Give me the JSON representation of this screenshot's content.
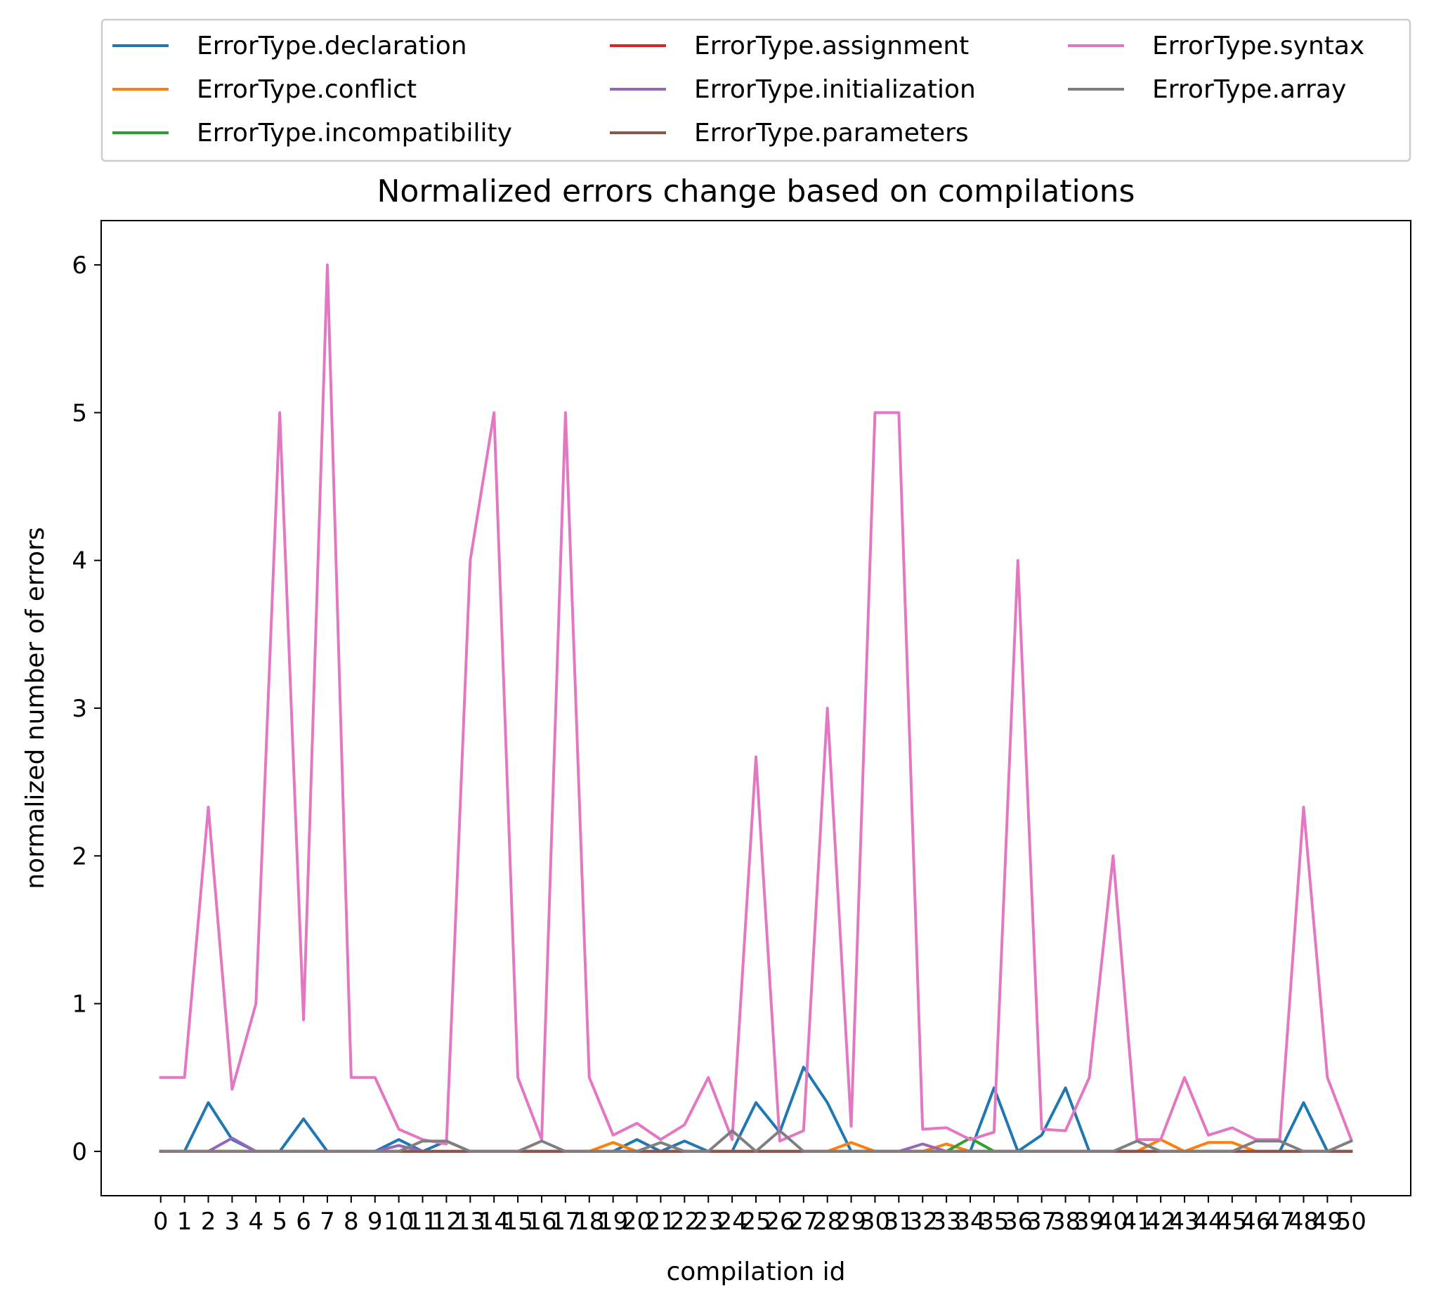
{
  "chart_data": {
    "type": "line",
    "title": "Normalized errors change based on compilations",
    "xlabel": "compilation id",
    "ylabel": "normalized number of errors",
    "x": [
      0,
      1,
      2,
      3,
      4,
      5,
      6,
      7,
      8,
      9,
      10,
      11,
      12,
      13,
      14,
      15,
      16,
      17,
      18,
      19,
      20,
      21,
      22,
      23,
      24,
      25,
      26,
      27,
      28,
      29,
      30,
      31,
      32,
      33,
      34,
      35,
      36,
      37,
      38,
      39,
      40,
      41,
      42,
      43,
      44,
      45,
      46,
      47,
      48,
      49,
      50
    ],
    "xlim": [
      -2.5,
      52.5
    ],
    "ylim": [
      -0.3,
      6.3
    ],
    "yticks": [
      0,
      1,
      2,
      3,
      4,
      5,
      6
    ],
    "grid": false,
    "legend": {
      "position": "above-plot",
      "columns": 3
    },
    "series": [
      {
        "name": "ErrorType.declaration",
        "color": "#1f77b4",
        "values": [
          0,
          0,
          0.33,
          0.08,
          0,
          0,
          0.22,
          0,
          0,
          0,
          0.08,
          0,
          0.07,
          0,
          0,
          0,
          0,
          0,
          0,
          0,
          0.08,
          0,
          0.07,
          0,
          0,
          0.33,
          0.13,
          0.57,
          0.33,
          0,
          0,
          0,
          0,
          0,
          0,
          0.43,
          0,
          0.11,
          0.43,
          0,
          0,
          0,
          0,
          0,
          0,
          0,
          0,
          0,
          0.33,
          0,
          0
        ]
      },
      {
        "name": "ErrorType.conflict",
        "color": "#ff7f0e",
        "values": [
          0,
          0,
          0,
          0,
          0,
          0,
          0,
          0,
          0,
          0,
          0,
          0,
          0,
          0,
          0,
          0,
          0,
          0,
          0,
          0.06,
          0,
          0,
          0,
          0,
          0,
          0,
          0,
          0,
          0,
          0.06,
          0,
          0,
          0,
          0.05,
          0,
          0,
          0,
          0,
          0,
          0,
          0,
          0,
          0.08,
          0,
          0.06,
          0.06,
          0,
          0,
          0,
          0,
          0
        ]
      },
      {
        "name": "ErrorType.incompatibility",
        "color": "#2ca02c",
        "values": [
          0,
          0,
          0,
          0,
          0,
          0,
          0,
          0,
          0,
          0,
          0,
          0,
          0,
          0,
          0,
          0,
          0,
          0,
          0,
          0,
          0,
          0,
          0,
          0,
          0,
          0,
          0,
          0,
          0,
          0,
          0,
          0,
          0,
          0,
          0.09,
          0,
          0,
          0,
          0,
          0,
          0,
          0,
          0,
          0,
          0,
          0,
          0,
          0,
          0,
          0,
          0
        ]
      },
      {
        "name": "ErrorType.assignment",
        "color": "#d62728",
        "values": [
          0,
          0,
          0,
          0,
          0,
          0,
          0,
          0,
          0,
          0,
          0,
          0,
          0,
          0,
          0,
          0,
          0,
          0,
          0,
          0,
          0,
          0,
          0,
          0,
          0,
          0,
          0,
          0,
          0,
          0,
          0,
          0,
          0,
          0,
          0,
          0,
          0,
          0,
          0,
          0,
          0,
          0,
          0,
          0,
          0,
          0,
          0,
          0,
          0,
          0,
          0
        ]
      },
      {
        "name": "ErrorType.initialization",
        "color": "#9467bd",
        "values": [
          0,
          0,
          0,
          0.09,
          0,
          0,
          0,
          0,
          0,
          0,
          0.04,
          0,
          0,
          0,
          0,
          0,
          0,
          0,
          0,
          0,
          0,
          0,
          0,
          0,
          0,
          0,
          0,
          0,
          0,
          0,
          0,
          0,
          0.05,
          0,
          0,
          0,
          0,
          0,
          0,
          0,
          0,
          0,
          0,
          0,
          0,
          0,
          0,
          0,
          0,
          0,
          0
        ]
      },
      {
        "name": "ErrorType.parameters",
        "color": "#8c564b",
        "values": [
          0,
          0,
          0,
          0,
          0,
          0,
          0,
          0,
          0,
          0,
          0,
          0,
          0,
          0,
          0,
          0,
          0,
          0,
          0,
          0,
          0,
          0,
          0,
          0,
          0,
          0,
          0,
          0,
          0,
          0,
          0,
          0,
          0,
          0,
          0,
          0,
          0,
          0,
          0,
          0,
          0,
          0,
          0,
          0,
          0,
          0,
          0,
          0,
          0,
          0,
          0
        ]
      },
      {
        "name": "ErrorType.syntax",
        "color": "#e377c2",
        "values": [
          0.5,
          0.5,
          2.33,
          0.42,
          1,
          5,
          0.89,
          6,
          0.5,
          0.5,
          0.15,
          0.08,
          0.05,
          4,
          5,
          0.5,
          0.08,
          5,
          0.5,
          0.11,
          0.19,
          0.08,
          0.18,
          0.5,
          0.08,
          2.67,
          0.07,
          0.14,
          3,
          0.17,
          5,
          5,
          0.15,
          0.16,
          0.08,
          0.13,
          4,
          0.15,
          0.14,
          0.5,
          2,
          0.08,
          0.08,
          0.5,
          0.11,
          0.16,
          0.08,
          0.08,
          2.33,
          0.5,
          0.08
        ]
      },
      {
        "name": "ErrorType.array",
        "color": "#7f7f7f",
        "values": [
          0,
          0,
          0,
          0,
          0,
          0,
          0,
          0,
          0,
          0,
          0,
          0.07,
          0.07,
          0,
          0,
          0,
          0.07,
          0,
          0,
          0,
          0,
          0.06,
          0,
          0,
          0.14,
          0,
          0.14,
          0,
          0,
          0,
          0,
          0,
          0,
          0,
          0,
          0,
          0,
          0,
          0,
          0,
          0,
          0.07,
          0,
          0,
          0,
          0,
          0.07,
          0.07,
          0,
          0,
          0.07
        ]
      }
    ]
  }
}
